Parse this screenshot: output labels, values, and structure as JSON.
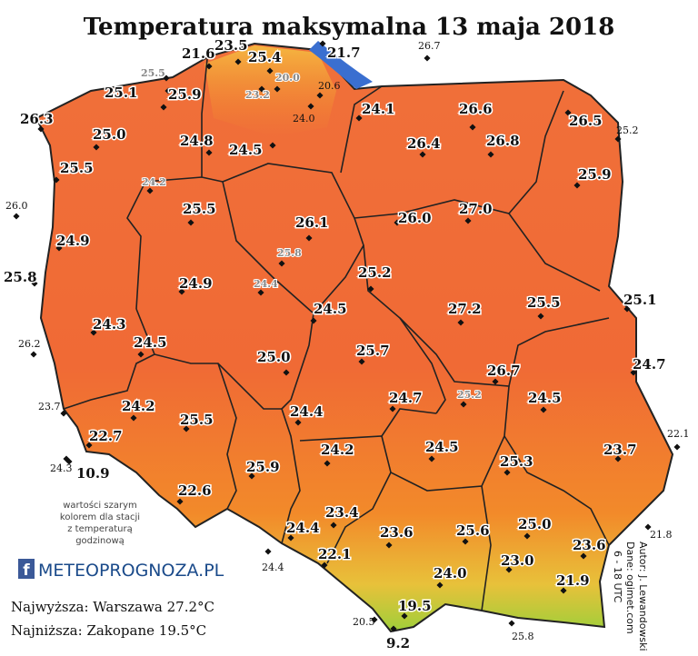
{
  "title": "Temperatura maksymalna 13 maja 2018",
  "note": [
    "wartości szarym",
    "kolorem dla stacji",
    "z temperaturą",
    "godzinową"
  ],
  "logo": {
    "icon": "f",
    "text": "METEOPROGNOZA.PL"
  },
  "summary": [
    "Najwyższa: Warszawa 27.2°C",
    "Najniższa: Zakopane 19.5°C"
  ],
  "credits": [
    "Autor: J. Lewandowski",
    "Dane: ogimet.com",
    "6 - 18 UTC"
  ],
  "stations": [
    {
      "value": "21.6",
      "style": "big"
    },
    {
      "value": "23.5",
      "style": "big"
    },
    {
      "value": "25.4",
      "style": "big"
    },
    {
      "value": "21.7",
      "style": "big"
    },
    {
      "value": "25.1",
      "style": "big"
    },
    {
      "value": "25.9",
      "style": "big"
    },
    {
      "value": "26.3",
      "style": "big"
    },
    {
      "value": "24.1",
      "style": "big"
    },
    {
      "value": "26.6",
      "style": "big"
    },
    {
      "value": "26.5",
      "style": "big"
    },
    {
      "value": "25.0",
      "style": "big"
    },
    {
      "value": "24.8",
      "style": "big"
    },
    {
      "value": "24.5",
      "style": "big"
    },
    {
      "value": "26.4",
      "style": "big"
    },
    {
      "value": "26.8",
      "style": "big"
    },
    {
      "value": "25.5",
      "style": "big"
    },
    {
      "value": "25.9",
      "style": "big"
    },
    {
      "value": "25.5",
      "style": "big"
    },
    {
      "value": "26.1",
      "style": "big"
    },
    {
      "value": "26.0",
      "style": "big"
    },
    {
      "value": "27.0",
      "style": "big"
    },
    {
      "value": "24.9",
      "style": "big"
    },
    {
      "value": "25.8",
      "style": "big"
    },
    {
      "value": "24.9",
      "style": "big"
    },
    {
      "value": "25.2",
      "style": "big"
    },
    {
      "value": "25.1",
      "style": "big"
    },
    {
      "value": "24.5",
      "style": "big"
    },
    {
      "value": "27.2",
      "style": "big"
    },
    {
      "value": "25.5",
      "style": "big"
    },
    {
      "value": "24.3",
      "style": "big"
    },
    {
      "value": "24.5",
      "style": "big"
    },
    {
      "value": "25.0",
      "style": "big"
    },
    {
      "value": "25.7",
      "style": "big"
    },
    {
      "value": "24.7",
      "style": "big"
    },
    {
      "value": "26.7",
      "style": "big"
    },
    {
      "value": "24.2",
      "style": "big"
    },
    {
      "value": "24.7",
      "style": "big"
    },
    {
      "value": "24.5",
      "style": "big"
    },
    {
      "value": "25.5",
      "style": "big"
    },
    {
      "value": "24.4",
      "style": "big"
    },
    {
      "value": "22.7",
      "style": "big"
    },
    {
      "value": "23.7",
      "style": "big"
    },
    {
      "value": "24.5",
      "style": "big"
    },
    {
      "value": "24.2",
      "style": "big"
    },
    {
      "value": "25.3",
      "style": "big"
    },
    {
      "value": "10.9",
      "style": "big"
    },
    {
      "value": "25.9",
      "style": "big"
    },
    {
      "value": "22.6",
      "style": "big"
    },
    {
      "value": "23.4",
      "style": "big"
    },
    {
      "value": "25.0",
      "style": "big"
    },
    {
      "value": "24.4",
      "style": "big"
    },
    {
      "value": "23.6",
      "style": "big"
    },
    {
      "value": "25.6",
      "style": "big"
    },
    {
      "value": "23.6",
      "style": "big"
    },
    {
      "value": "22.1",
      "style": "big"
    },
    {
      "value": "23.0",
      "style": "big"
    },
    {
      "value": "24.0",
      "style": "big"
    },
    {
      "value": "21.9",
      "style": "big"
    },
    {
      "value": "19.5",
      "style": "big"
    },
    {
      "value": "9.2",
      "style": "big"
    },
    {
      "value": "26.7",
      "style": "small"
    },
    {
      "value": "25.5",
      "style": "gray"
    },
    {
      "value": "20.0",
      "style": "gray"
    },
    {
      "value": "20.6",
      "style": "small"
    },
    {
      "value": "23.2",
      "style": "gray"
    },
    {
      "value": "24.0",
      "style": "small"
    },
    {
      "value": "25.2",
      "style": "small"
    },
    {
      "value": "24.2",
      "style": "gray"
    },
    {
      "value": "26.0",
      "style": "small"
    },
    {
      "value": "25.8",
      "style": "gray"
    },
    {
      "value": "24.4",
      "style": "gray"
    },
    {
      "value": "26.2",
      "style": "small"
    },
    {
      "value": "23.7",
      "style": "small"
    },
    {
      "value": "25.2",
      "style": "gray"
    },
    {
      "value": "22.1",
      "style": "small"
    },
    {
      "value": "24.3",
      "style": "small"
    },
    {
      "value": "21.8",
      "style": "small"
    },
    {
      "value": "24.4",
      "style": "small"
    },
    {
      "value": "20.5",
      "style": "small"
    },
    {
      "value": "25.8",
      "style": "small"
    }
  ]
}
